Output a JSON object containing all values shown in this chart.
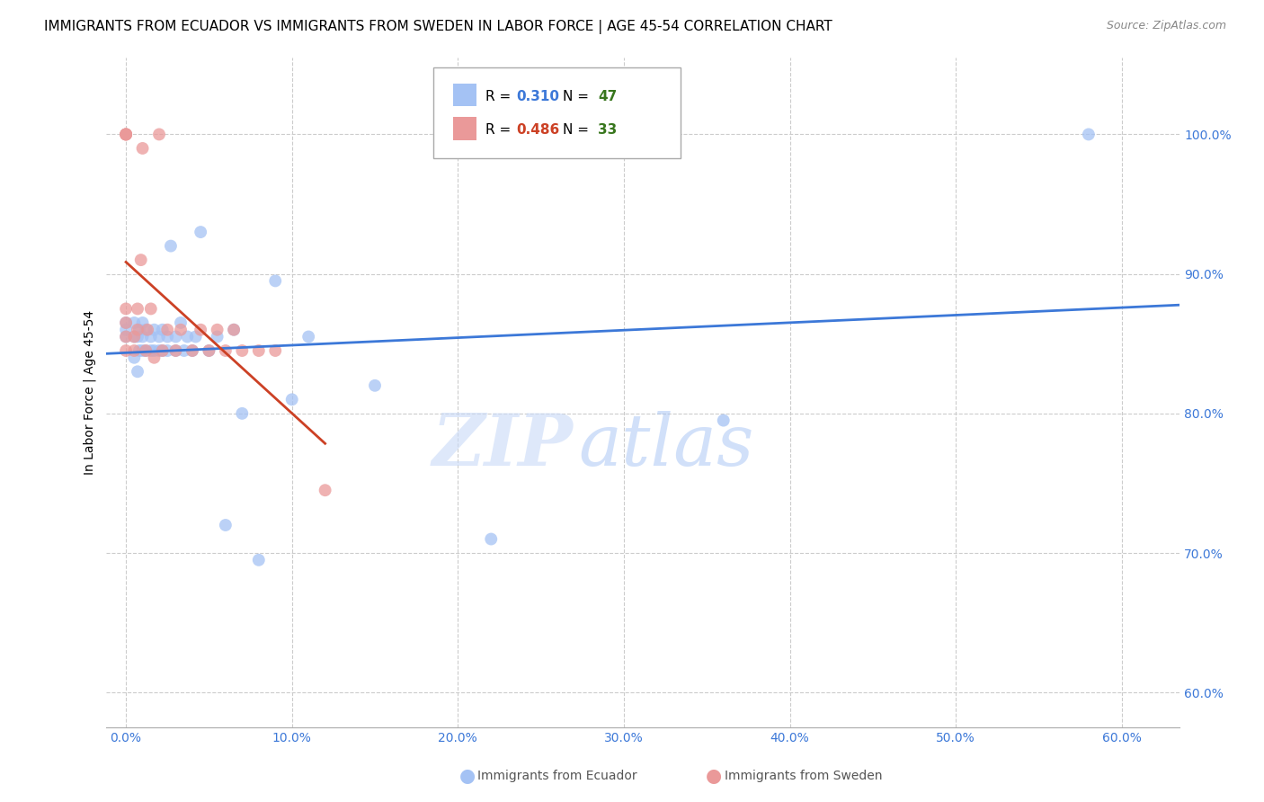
{
  "title": "IMMIGRANTS FROM ECUADOR VS IMMIGRANTS FROM SWEDEN IN LABOR FORCE | AGE 45-54 CORRELATION CHART",
  "source": "Source: ZipAtlas.com",
  "ylabel": "In Labor Force | Age 45-54",
  "x_ticks": [
    0.0,
    0.1,
    0.2,
    0.3,
    0.4,
    0.5,
    0.6
  ],
  "x_tick_labels": [
    "0.0%",
    "10.0%",
    "20.0%",
    "30.0%",
    "40.0%",
    "50.0%",
    "60.0%"
  ],
  "y_ticks": [
    0.6,
    0.7,
    0.8,
    0.9,
    1.0
  ],
  "y_tick_labels": [
    "60.0%",
    "70.0%",
    "80.0%",
    "90.0%",
    "100.0%"
  ],
  "xlim": [
    -0.012,
    0.635
  ],
  "ylim": [
    0.575,
    1.055
  ],
  "ecuador_color": "#a4c2f4",
  "ecuador_color_line": "#3c78d8",
  "sweden_color": "#ea9999",
  "sweden_color_line": "#cc4125",
  "legend_r_ecuador": "R = 0.310",
  "legend_n_ecuador": "N = 47",
  "legend_r_sweden": "R = 0.486",
  "legend_n_sweden": "N = 33",
  "watermark_zip": "ZIP",
  "watermark_atlas": "atlas",
  "ecuador_x": [
    0.0,
    0.0,
    0.0,
    0.005,
    0.005,
    0.005,
    0.007,
    0.007,
    0.008,
    0.008,
    0.01,
    0.01,
    0.01,
    0.012,
    0.012,
    0.015,
    0.015,
    0.017,
    0.017,
    0.02,
    0.02,
    0.022,
    0.022,
    0.025,
    0.025,
    0.027,
    0.03,
    0.03,
    0.033,
    0.035,
    0.037,
    0.04,
    0.042,
    0.045,
    0.05,
    0.055,
    0.06,
    0.065,
    0.07,
    0.08,
    0.09,
    0.1,
    0.11,
    0.15,
    0.22,
    0.36,
    0.58
  ],
  "ecuador_y": [
    0.855,
    0.86,
    0.865,
    0.84,
    0.855,
    0.865,
    0.83,
    0.855,
    0.845,
    0.86,
    0.845,
    0.855,
    0.865,
    0.845,
    0.86,
    0.845,
    0.855,
    0.845,
    0.86,
    0.845,
    0.855,
    0.845,
    0.86,
    0.845,
    0.855,
    0.92,
    0.845,
    0.855,
    0.865,
    0.845,
    0.855,
    0.845,
    0.855,
    0.93,
    0.845,
    0.855,
    0.72,
    0.86,
    0.8,
    0.695,
    0.895,
    0.81,
    0.855,
    0.82,
    0.71,
    0.795,
    1.0
  ],
  "sweden_x": [
    0.0,
    0.0,
    0.0,
    0.0,
    0.0,
    0.0,
    0.0,
    0.0,
    0.005,
    0.005,
    0.007,
    0.007,
    0.009,
    0.01,
    0.012,
    0.013,
    0.015,
    0.017,
    0.02,
    0.022,
    0.025,
    0.03,
    0.033,
    0.04,
    0.045,
    0.05,
    0.055,
    0.06,
    0.065,
    0.07,
    0.08,
    0.09,
    0.12
  ],
  "sweden_y": [
    0.845,
    0.855,
    0.865,
    0.875,
    1.0,
    1.0,
    1.0,
    1.0,
    0.845,
    0.855,
    0.86,
    0.875,
    0.91,
    0.99,
    0.845,
    0.86,
    0.875,
    0.84,
    1.0,
    0.845,
    0.86,
    0.845,
    0.86,
    0.845,
    0.86,
    0.845,
    0.86,
    0.845,
    0.86,
    0.845,
    0.845,
    0.845,
    0.745
  ],
  "grid_color": "#cccccc",
  "background_color": "#ffffff",
  "title_fontsize": 11,
  "axis_label_fontsize": 10,
  "tick_fontsize": 10,
  "legend_fontsize": 11,
  "r_color_ecuador": "#3c78d8",
  "r_color_sweden": "#cc4125",
  "n_color_ecuador": "#38761d",
  "n_color_sweden": "#38761d"
}
